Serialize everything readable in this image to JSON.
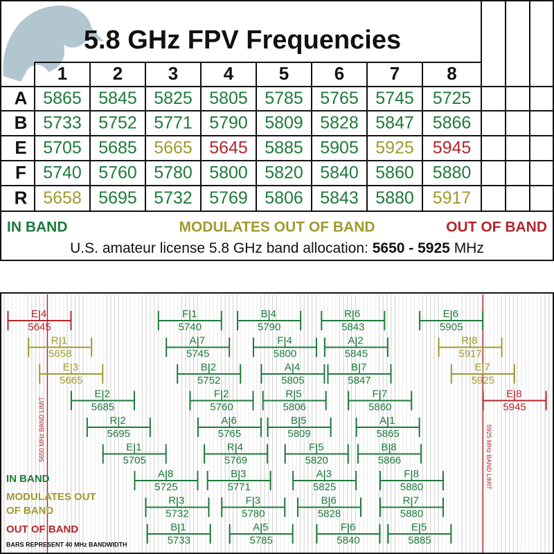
{
  "header": {
    "title": "5.8 GHz FPV Frequencies",
    "columns": [
      1,
      2,
      3,
      4,
      5,
      6,
      7,
      8
    ]
  },
  "table": {
    "rows": [
      {
        "band": "A",
        "values": [
          5865,
          5845,
          5825,
          5805,
          5785,
          5765,
          5745,
          5725
        ],
        "colors": [
          "#1e7a3a",
          "#1e7a3a",
          "#1e7a3a",
          "#1e7a3a",
          "#1e7a3a",
          "#1e7a3a",
          "#1e7a3a",
          "#1e7a3a"
        ]
      },
      {
        "band": "B",
        "values": [
          5733,
          5752,
          5771,
          5790,
          5809,
          5828,
          5847,
          5866
        ],
        "colors": [
          "#1e7a3a",
          "#1e7a3a",
          "#1e7a3a",
          "#1e7a3a",
          "#1e7a3a",
          "#1e7a3a",
          "#1e7a3a",
          "#1e7a3a"
        ]
      },
      {
        "band": "E",
        "values": [
          5705,
          5685,
          5665,
          5645,
          5885,
          5905,
          5925,
          5945
        ],
        "colors": [
          "#1e7a3a",
          "#1e7a3a",
          "#a09a2e",
          "#b3262b",
          "#1e7a3a",
          "#1e7a3a",
          "#a09a2e",
          "#b3262b"
        ]
      },
      {
        "band": "F",
        "values": [
          5740,
          5760,
          5780,
          5800,
          5820,
          5840,
          5860,
          5880
        ],
        "colors": [
          "#1e7a3a",
          "#1e7a3a",
          "#1e7a3a",
          "#1e7a3a",
          "#1e7a3a",
          "#1e7a3a",
          "#1e7a3a",
          "#1e7a3a"
        ]
      },
      {
        "band": "R",
        "values": [
          5658,
          5695,
          5732,
          5769,
          5806,
          5843,
          5880,
          5917
        ],
        "colors": [
          "#a09a2e",
          "#1e7a3a",
          "#1e7a3a",
          "#1e7a3a",
          "#1e7a3a",
          "#1e7a3a",
          "#1e7a3a",
          "#a09a2e"
        ]
      }
    ]
  },
  "legend": [
    {
      "label": "IN BAND",
      "color": "#1e7a3a"
    },
    {
      "label": "MODULATES OUT OF BAND",
      "color": "#a09a2e"
    },
    {
      "label": "OUT OF BAND",
      "color": "#b3262b"
    }
  ],
  "footer": {
    "text": "U.S. amateur license 5.8 GHz band allocation:",
    "band_low": 5650,
    "separator": "-",
    "band_high": 5925,
    "unit": "MHz"
  },
  "diagram": {
    "bars": [
      {
        "band": "E",
        "channel": 4,
        "frequency": 5645,
        "color": "#b3262b"
      },
      {
        "band": "F",
        "channel": 1,
        "frequency": 5740,
        "color": "#1e7a3a"
      },
      {
        "band": "B",
        "channel": 4,
        "frequency": 5790,
        "color": "#1e7a3a"
      },
      {
        "band": "R",
        "channel": 6,
        "frequency": 5843,
        "color": "#1e7a3a"
      },
      {
        "band": "E",
        "channel": 6,
        "frequency": 5905,
        "color": "#1e7a3a"
      },
      {
        "band": "R",
        "channel": 1,
        "frequency": 5658,
        "color": "#a09a2e"
      },
      {
        "band": "A",
        "channel": 7,
        "frequency": 5745,
        "color": "#1e7a3a"
      },
      {
        "band": "F",
        "channel": 4,
        "frequency": 5800,
        "color": "#1e7a3a"
      },
      {
        "band": "A",
        "channel": 2,
        "frequency": 5845,
        "color": "#1e7a3a"
      },
      {
        "band": "R",
        "channel": 8,
        "frequency": 5917,
        "color": "#a09a2e"
      },
      {
        "band": "E",
        "channel": 3,
        "frequency": 5665,
        "color": "#a09a2e"
      },
      {
        "band": "B",
        "channel": 2,
        "frequency": 5752,
        "color": "#1e7a3a"
      },
      {
        "band": "A",
        "channel": 4,
        "frequency": 5805,
        "color": "#1e7a3a"
      },
      {
        "band": "B",
        "channel": 7,
        "frequency": 5847,
        "color": "#1e7a3a"
      },
      {
        "band": "E",
        "channel": 7,
        "frequency": 5925,
        "color": "#a09a2e"
      },
      {
        "band": "E",
        "channel": 2,
        "frequency": 5685,
        "color": "#1e7a3a"
      },
      {
        "band": "F",
        "channel": 2,
        "frequency": 5760,
        "color": "#1e7a3a"
      },
      {
        "band": "R",
        "channel": 5,
        "frequency": 5806,
        "color": "#1e7a3a"
      },
      {
        "band": "F",
        "channel": 7,
        "frequency": 5860,
        "color": "#1e7a3a"
      },
      {
        "band": "E",
        "channel": 8,
        "frequency": 5945,
        "color": "#b3262b"
      },
      {
        "band": "R",
        "channel": 2,
        "frequency": 5695,
        "color": "#1e7a3a"
      },
      {
        "band": "A",
        "channel": 6,
        "frequency": 5765,
        "color": "#1e7a3a"
      },
      {
        "band": "B",
        "channel": 5,
        "frequency": 5809,
        "color": "#1e7a3a"
      },
      {
        "band": "A",
        "channel": 1,
        "frequency": 5865,
        "color": "#1e7a3a"
      },
      {
        "band": "E",
        "channel": 1,
        "frequency": 5705,
        "color": "#1e7a3a"
      },
      {
        "band": "R",
        "channel": 4,
        "frequency": 5769,
        "color": "#1e7a3a"
      },
      {
        "band": "F",
        "channel": 5,
        "frequency": 5820,
        "color": "#1e7a3a"
      },
      {
        "band": "B",
        "channel": 8,
        "frequency": 5866,
        "color": "#1e7a3a"
      },
      {
        "band": "A",
        "channel": 8,
        "frequency": 5725,
        "color": "#1e7a3a"
      },
      {
        "band": "B",
        "channel": 3,
        "frequency": 5771,
        "color": "#1e7a3a"
      },
      {
        "band": "A",
        "channel": 3,
        "frequency": 5825,
        "color": "#1e7a3a"
      },
      {
        "band": "F",
        "channel": 8,
        "frequency": 5880,
        "color": "#1e7a3a"
      },
      {
        "band": "R",
        "channel": 3,
        "frequency": 5732,
        "color": "#1e7a3a"
      },
      {
        "band": "F",
        "channel": 3,
        "frequency": 5780,
        "color": "#1e7a3a"
      },
      {
        "band": "B",
        "channel": 6,
        "frequency": 5828,
        "color": "#1e7a3a"
      },
      {
        "band": "R",
        "channel": 7,
        "frequency": 5880,
        "color": "#1e7a3a"
      },
      {
        "band": "B",
        "channel": 1,
        "frequency": 5733,
        "color": "#1e7a3a"
      },
      {
        "band": "A",
        "channel": 5,
        "frequency": 5785,
        "color": "#1e7a3a"
      },
      {
        "band": "F",
        "channel": 6,
        "frequency": 5840,
        "color": "#1e7a3a"
      },
      {
        "band": "E",
        "channel": 5,
        "frequency": 5885,
        "color": "#1e7a3a"
      }
    ],
    "limit_labels": [
      "5650 MHz BAND LIMIT",
      "5925 MHz BAND LIMIT"
    ],
    "legend": [
      "IN BAND",
      "MODULATES OUT",
      "OF BAND",
      "OUT OF BAND"
    ],
    "note": "BARS REPRESENT 40 MHz BANDWIDTH"
  }
}
